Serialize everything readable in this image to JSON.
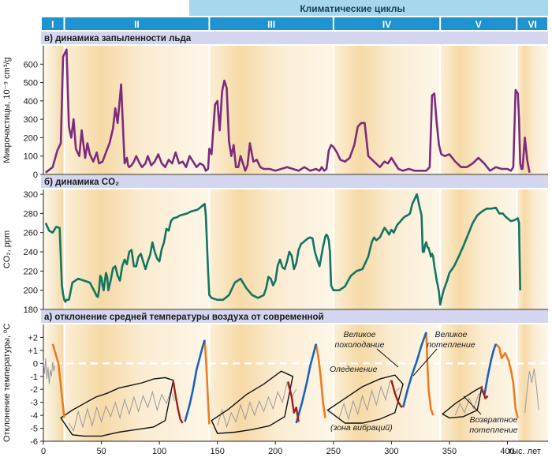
{
  "cycles": {
    "header": "Климатические циклы",
    "labels": [
      "I",
      "II",
      "III",
      "IV",
      "V",
      "VI"
    ],
    "boundaries": [
      0,
      18,
      143,
      250,
      342,
      408,
      445
    ]
  },
  "chart_data": [
    {
      "id": "dust",
      "type": "line",
      "title": "в) динамика запыленности льда",
      "ylabel": "Микрочастицы, 10⁻⁹ cm³/g",
      "ylim": [
        0,
        700
      ],
      "yticks": [
        0,
        100,
        200,
        300,
        400,
        500,
        600
      ],
      "color": "#7b2c7e",
      "x": [
        2,
        8,
        12,
        15,
        17,
        20,
        22,
        24,
        26,
        28,
        31,
        33,
        36,
        38,
        40,
        43,
        46,
        48,
        51,
        54,
        57,
        60,
        62,
        64,
        67,
        70,
        72,
        73,
        74,
        76,
        78,
        80,
        83,
        85,
        88,
        90,
        93,
        96,
        99,
        102,
        105,
        108,
        111,
        114,
        117,
        120,
        123,
        126,
        129,
        132,
        135,
        138,
        140,
        142,
        143,
        145,
        148,
        150,
        152,
        154,
        156,
        158,
        160,
        162,
        164,
        166,
        168,
        170,
        172,
        174,
        176,
        178,
        181,
        184,
        187,
        190,
        195,
        200,
        205,
        210,
        215,
        220,
        225,
        230,
        235,
        238,
        240,
        242,
        244,
        246,
        248,
        250,
        253,
        256,
        260,
        264,
        268,
        271,
        274,
        277,
        280,
        285,
        290,
        294,
        297,
        300,
        303,
        306,
        310,
        315,
        320,
        325,
        330,
        333,
        335,
        337,
        339,
        341,
        343,
        346,
        350,
        355,
        360,
        365,
        370,
        375,
        380,
        385,
        390,
        395,
        400,
        403,
        405,
        407,
        409,
        410,
        411,
        412,
        413,
        415,
        417,
        419
      ],
      "y": [
        10,
        40,
        130,
        170,
        640,
        680,
        260,
        200,
        300,
        140,
        100,
        240,
        90,
        170,
        110,
        70,
        120,
        60,
        70,
        120,
        170,
        250,
        360,
        280,
        490,
        60,
        90,
        50,
        40,
        50,
        70,
        100,
        60,
        40,
        60,
        100,
        50,
        70,
        110,
        60,
        40,
        80,
        60,
        120,
        60,
        70,
        40,
        100,
        70,
        40,
        60,
        50,
        20,
        30,
        140,
        110,
        380,
        400,
        240,
        450,
        510,
        470,
        180,
        100,
        160,
        40,
        40,
        100,
        60,
        20,
        50,
        170,
        70,
        80,
        40,
        30,
        30,
        20,
        30,
        40,
        30,
        20,
        40,
        20,
        30,
        20,
        40,
        20,
        30,
        130,
        160,
        150,
        120,
        80,
        70,
        90,
        160,
        260,
        280,
        280,
        100,
        70,
        40,
        70,
        60,
        90,
        60,
        30,
        20,
        30,
        20,
        20,
        20,
        40,
        430,
        440,
        280,
        160,
        110,
        100,
        110,
        70,
        40,
        40,
        60,
        90,
        60,
        20,
        40,
        30,
        30,
        20,
        40,
        460,
        440,
        300,
        60,
        30,
        30,
        200,
        80,
        10
      ]
    },
    {
      "id": "co2",
      "type": "line",
      "title": "б) динамика CO₂",
      "ylabel": "CO₂, ppm",
      "ylim": [
        180,
        305
      ],
      "yticks": [
        180,
        200,
        220,
        240,
        260,
        280,
        300
      ],
      "color": "#127562",
      "x": [
        2,
        5,
        8,
        11,
        14,
        16,
        17,
        18,
        19,
        20,
        22,
        25,
        30,
        35,
        40,
        44,
        46,
        47,
        48,
        49,
        50,
        51,
        52,
        53,
        54,
        55,
        56,
        58,
        60,
        62,
        64,
        66,
        68,
        70,
        72,
        74,
        76,
        78,
        80,
        82,
        84,
        86,
        88,
        90,
        92,
        94,
        96,
        98,
        100,
        102,
        104,
        106,
        108,
        110,
        112,
        115,
        118,
        121,
        124,
        127,
        130,
        133,
        135,
        137,
        139,
        140,
        141,
        142,
        143,
        145,
        150,
        155,
        160,
        165,
        170,
        175,
        180,
        185,
        190,
        192,
        194,
        196,
        198,
        200,
        202,
        204,
        206,
        208,
        210,
        212,
        214,
        216,
        218,
        220,
        222,
        224,
        226,
        228,
        230,
        232,
        234,
        236,
        238,
        240,
        241,
        242,
        243,
        244,
        245,
        246,
        247,
        248,
        250,
        255,
        260,
        265,
        270,
        275,
        280,
        283,
        285,
        287,
        290,
        292,
        294,
        296,
        298,
        300,
        302,
        305,
        308,
        310,
        312,
        314,
        316,
        318,
        320,
        322,
        324,
        326,
        327,
        328,
        329,
        330,
        331,
        332,
        333,
        334,
        335,
        336,
        337,
        338,
        339,
        340,
        341,
        342,
        343,
        345,
        348,
        350,
        354,
        358,
        362,
        366,
        370,
        374,
        378,
        382,
        386,
        390,
        393,
        396,
        398,
        400,
        403,
        406,
        409,
        410,
        411
      ],
      "y": [
        270,
        262,
        260,
        266,
        265,
        205,
        196,
        190,
        188,
        190,
        190,
        208,
        212,
        210,
        208,
        199,
        194,
        193,
        200,
        215,
        213,
        205,
        200,
        210,
        218,
        214,
        200,
        210,
        223,
        225,
        215,
        210,
        225,
        232,
        227,
        240,
        242,
        225,
        225,
        235,
        238,
        230,
        222,
        230,
        237,
        250,
        240,
        233,
        230,
        243,
        250,
        264,
        262,
        272,
        275,
        276,
        278,
        279,
        280,
        282,
        283,
        284,
        286,
        288,
        290,
        278,
        250,
        220,
        195,
        192,
        190,
        190,
        195,
        208,
        212,
        202,
        195,
        192,
        195,
        202,
        214,
        212,
        205,
        210,
        226,
        232,
        224,
        222,
        230,
        240,
        236,
        222,
        228,
        242,
        248,
        250,
        252,
        254,
        255,
        254,
        240,
        232,
        225,
        238,
        245,
        250,
        256,
        258,
        256,
        252,
        240,
        205,
        200,
        200,
        204,
        215,
        220,
        222,
        235,
        250,
        255,
        252,
        255,
        260,
        265,
        262,
        258,
        263,
        260,
        268,
        272,
        275,
        277,
        278,
        280,
        290,
        295,
        300,
        288,
        278,
        240,
        240,
        247,
        250,
        245,
        244,
        240,
        235,
        238,
        235,
        225,
        218,
        210,
        205,
        198,
        185,
        190,
        200,
        210,
        218,
        225,
        235,
        246,
        258,
        270,
        278,
        282,
        285,
        285,
        286,
        280,
        280,
        277,
        275,
        272,
        273,
        275,
        270,
        200
      ]
    },
    {
      "id": "temp",
      "type": "line",
      "title": "а) отклонение средней температуры воздуха от современной",
      "ylabel": "Отклонение температуры, ºC",
      "ylim": [
        -6,
        3
      ],
      "yticks": [
        2,
        1,
        0,
        -1,
        -2,
        -3,
        -4,
        -5,
        -6
      ],
      "ytick_labels": [
        "+2",
        "+1",
        "0",
        "-1",
        "-2",
        "-3",
        "-4",
        "-5",
        "-6"
      ],
      "xlabel": "тыс. лет",
      "xlim": [
        0,
        435
      ],
      "xticks": [
        0,
        50,
        100,
        150,
        200,
        250,
        300,
        350,
        400
      ],
      "zero_line": true,
      "noise": [
        {
          "x": [
            0,
            1,
            2,
            3,
            4,
            5,
            6,
            7,
            8,
            9,
            10
          ],
          "y": [
            0.2,
            -0.8,
            0.4,
            -1.2,
            -0.3,
            -1.6,
            -0.5,
            -1.0,
            0.1,
            -0.6,
            -0.2
          ]
        },
        {
          "x": [
            22,
            26,
            30,
            34,
            38,
            42,
            46,
            50,
            54,
            58,
            62,
            66,
            70,
            74,
            78,
            82,
            86,
            90,
            94,
            98,
            102,
            106,
            110,
            113
          ],
          "y": [
            -4.6,
            -5.2,
            -3.7,
            -4.9,
            -3.5,
            -4.8,
            -3.4,
            -4.5,
            -3.3,
            -4.1,
            -3.0,
            -4.2,
            -2.8,
            -3.9,
            -2.6,
            -3.7,
            -2.5,
            -3.4,
            -2.2,
            -3.6,
            -2.4,
            -3.1,
            -2.1,
            -2.9
          ]
        },
        {
          "x": [
            150,
            154,
            158,
            162,
            166,
            170,
            174,
            178,
            182,
            186,
            190,
            194,
            198,
            202,
            206,
            210,
            214,
            218
          ],
          "y": [
            -4.8,
            -3.6,
            -4.9,
            -3.8,
            -4.5,
            -3.2,
            -4.3,
            -3.0,
            -4.0,
            -2.9,
            -3.7,
            -2.6,
            -3.5,
            -2.2,
            -3.0,
            -1.5,
            -2.6,
            -2.0
          ]
        },
        {
          "x": [
            255,
            259,
            263,
            267,
            271,
            275,
            279,
            283,
            287,
            291,
            295,
            299,
            303,
            307
          ],
          "y": [
            -4.2,
            -3.1,
            -4.3,
            -2.9,
            -3.9,
            -2.5,
            -3.6,
            -2.1,
            -3.2,
            -1.8,
            -2.8,
            -1.3,
            -2.2,
            -1.9
          ]
        },
        {
          "x": [
            355,
            359,
            363,
            367,
            371,
            375,
            379
          ],
          "y": [
            -4.0,
            -3.1,
            -3.8,
            -2.7,
            -3.5,
            -2.4,
            -2.2
          ]
        },
        {
          "x": [
            415,
            417,
            419,
            421,
            423,
            425,
            427
          ],
          "y": [
            -3.8,
            -2.0,
            -0.6,
            -1.5,
            -0.4,
            -1.8,
            -3.6
          ]
        }
      ],
      "envelopes": [
        {
          "x": [
            15,
            25,
            35,
            45,
            55,
            65,
            75,
            85,
            95,
            105,
            112,
            105,
            95,
            80,
            65,
            50,
            35,
            25,
            15
          ],
          "y": [
            -4.2,
            -3.6,
            -3.1,
            -2.6,
            -2.3,
            -1.9,
            -1.7,
            -1.5,
            -1.2,
            -1.1,
            -1.3,
            -4.4,
            -4.9,
            -5.1,
            -5.3,
            -5.6,
            -5.6,
            -5.5,
            -4.2
          ]
        },
        {
          "x": [
            145,
            160,
            175,
            190,
            205,
            215,
            208,
            195,
            180,
            165,
            150,
            145
          ],
          "y": [
            -4.4,
            -3.5,
            -2.4,
            -1.6,
            -0.6,
            -1.0,
            -4.1,
            -4.8,
            -5.1,
            -5.3,
            -5.4,
            -4.4
          ]
        },
        {
          "x": [
            245,
            260,
            275,
            290,
            303,
            310,
            303,
            290,
            275,
            260,
            245
          ],
          "y": [
            -3.6,
            -2.7,
            -1.8,
            -1.2,
            -0.9,
            -1.6,
            -3.8,
            -4.3,
            -4.6,
            -4.6,
            -3.6
          ]
        },
        {
          "x": [
            344,
            355,
            365,
            372,
            378,
            374,
            362,
            350,
            344
          ],
          "y": [
            -3.9,
            -3.1,
            -2.5,
            -2.1,
            -1.8,
            -3.6,
            -4.1,
            -4.2,
            -3.9
          ]
        }
      ],
      "orange": [
        {
          "x": [
            8,
            13,
            16,
            18
          ],
          "y": [
            1.5,
            0.0,
            -2.5,
            -4.2
          ]
        },
        {
          "x": [
            139,
            140,
            141,
            142,
            143
          ],
          "y": [
            1.8,
            0.5,
            -1.0,
            -3.0,
            -4.7
          ]
        },
        {
          "x": [
            235,
            237,
            239,
            241,
            243
          ],
          "y": [
            1.5,
            0.5,
            -1.0,
            -3.0,
            -4.2
          ]
        },
        {
          "x": [
            330,
            331,
            332,
            334,
            336
          ],
          "y": [
            2.4,
            0.0,
            -2.0,
            -3.5,
            -4.0
          ]
        },
        {
          "x": [
            390,
            393,
            395,
            398,
            401,
            403,
            405,
            407,
            409
          ],
          "y": [
            1.5,
            1.2,
            0.4,
            0.8,
            0.2,
            -0.5,
            -1.5,
            -3.5,
            -4.2
          ]
        }
      ],
      "blue": [
        {
          "x": [
            122,
            126,
            129,
            132,
            135,
            137,
            139
          ],
          "y": [
            -4.5,
            -3.2,
            -2.0,
            -0.5,
            0.5,
            1.2,
            1.8
          ]
        },
        {
          "x": [
            218,
            223,
            227,
            230,
            233,
            235
          ],
          "y": [
            -4.6,
            -3.0,
            -1.5,
            -0.2,
            0.8,
            1.5
          ]
        },
        {
          "x": [
            310,
            314,
            318,
            322,
            326,
            330
          ],
          "y": [
            -3.4,
            -2.0,
            -0.8,
            0.2,
            1.4,
            2.4
          ]
        },
        {
          "x": [
            380,
            383,
            386,
            388,
            390
          ],
          "y": [
            -2.5,
            -1.0,
            0.3,
            1.0,
            1.5
          ]
        }
      ],
      "red": [
        {
          "x": [
            112,
            114,
            116,
            118,
            120
          ],
          "y": [
            -1.4,
            -2.5,
            -3.5,
            -4.3,
            -4.6
          ]
        },
        {
          "x": [
            211,
            214,
            216,
            218,
            220
          ],
          "y": [
            -1.4,
            -2.6,
            -3.8,
            -3.4,
            -4.5
          ]
        },
        {
          "x": [
            300,
            303,
            306,
            309
          ],
          "y": [
            -1.3,
            -2.3,
            -3.0,
            -3.4
          ]
        },
        {
          "x": [
            377,
            379,
            381,
            383
          ],
          "y": [
            -1.8,
            -2.2,
            -2.7,
            -2.5
          ]
        }
      ],
      "annotations": {
        "great_cooling": [
          "Великое",
          "похолодание"
        ],
        "great_warming": [
          "Великое",
          "потепление"
        ],
        "glaciation": "Оледенение",
        "vibration_zone": "(зона вибраций)",
        "return_warming": [
          "Возвратное",
          "потепление"
        ]
      }
    }
  ]
}
